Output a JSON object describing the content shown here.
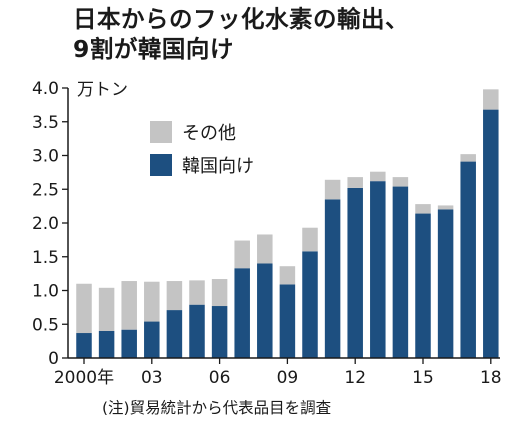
{
  "title_lines": [
    "日本からのフッ化水素の輸出、",
    "9割が韓国向け"
  ],
  "note": "(注)貿易統計から代表品目を調査",
  "colors": {
    "korea": "#1d4f80",
    "other": "#c4c4c4",
    "axis": "#1a1a1a"
  },
  "chart_data": {
    "type": "bar",
    "stacked": true,
    "title": "日本からのフッ化水素の輸出、9割が韓国向け",
    "ylabel": "万トン",
    "ylim": [
      0,
      4.0
    ],
    "yticks": [
      {
        "value": 0,
        "label": "0"
      },
      {
        "value": 0.5,
        "label": "0.5"
      },
      {
        "value": 1.0,
        "label": "1.0"
      },
      {
        "value": 1.5,
        "label": "1.5"
      },
      {
        "value": 2.0,
        "label": "2.0"
      },
      {
        "value": 2.5,
        "label": "2.5"
      },
      {
        "value": 3.0,
        "label": "3.0"
      },
      {
        "value": 3.5,
        "label": "3.5"
      },
      {
        "value": 4.0,
        "label": "4.0"
      }
    ],
    "categories": [
      2000,
      2001,
      2002,
      2003,
      2004,
      2005,
      2006,
      2007,
      2008,
      2009,
      2010,
      2011,
      2012,
      2013,
      2014,
      2015,
      2016,
      2017,
      2018
    ],
    "xtick_labels": [
      {
        "year": 2000,
        "label": "2000年"
      },
      {
        "year": 2003,
        "label": "03"
      },
      {
        "year": 2006,
        "label": "06"
      },
      {
        "year": 2009,
        "label": "09"
      },
      {
        "year": 2012,
        "label": "12"
      },
      {
        "year": 2015,
        "label": "15"
      },
      {
        "year": 2018,
        "label": "18"
      }
    ],
    "series": [
      {
        "name": "韓国向け",
        "color": "#1d4f80",
        "values": [
          0.37,
          0.4,
          0.42,
          0.54,
          0.71,
          0.79,
          0.77,
          1.33,
          1.4,
          1.09,
          1.58,
          2.35,
          2.52,
          2.62,
          2.54,
          2.14,
          2.2,
          2.91,
          3.68
        ]
      },
      {
        "name": "その他",
        "color": "#c4c4c4",
        "values": [
          0.73,
          0.64,
          0.72,
          0.59,
          0.43,
          0.36,
          0.4,
          0.41,
          0.43,
          0.27,
          0.35,
          0.29,
          0.16,
          0.14,
          0.14,
          0.14,
          0.06,
          0.11,
          0.3
        ]
      }
    ],
    "legend": [
      "その他",
      "韓国向け"
    ],
    "legend_position": "top-left"
  }
}
